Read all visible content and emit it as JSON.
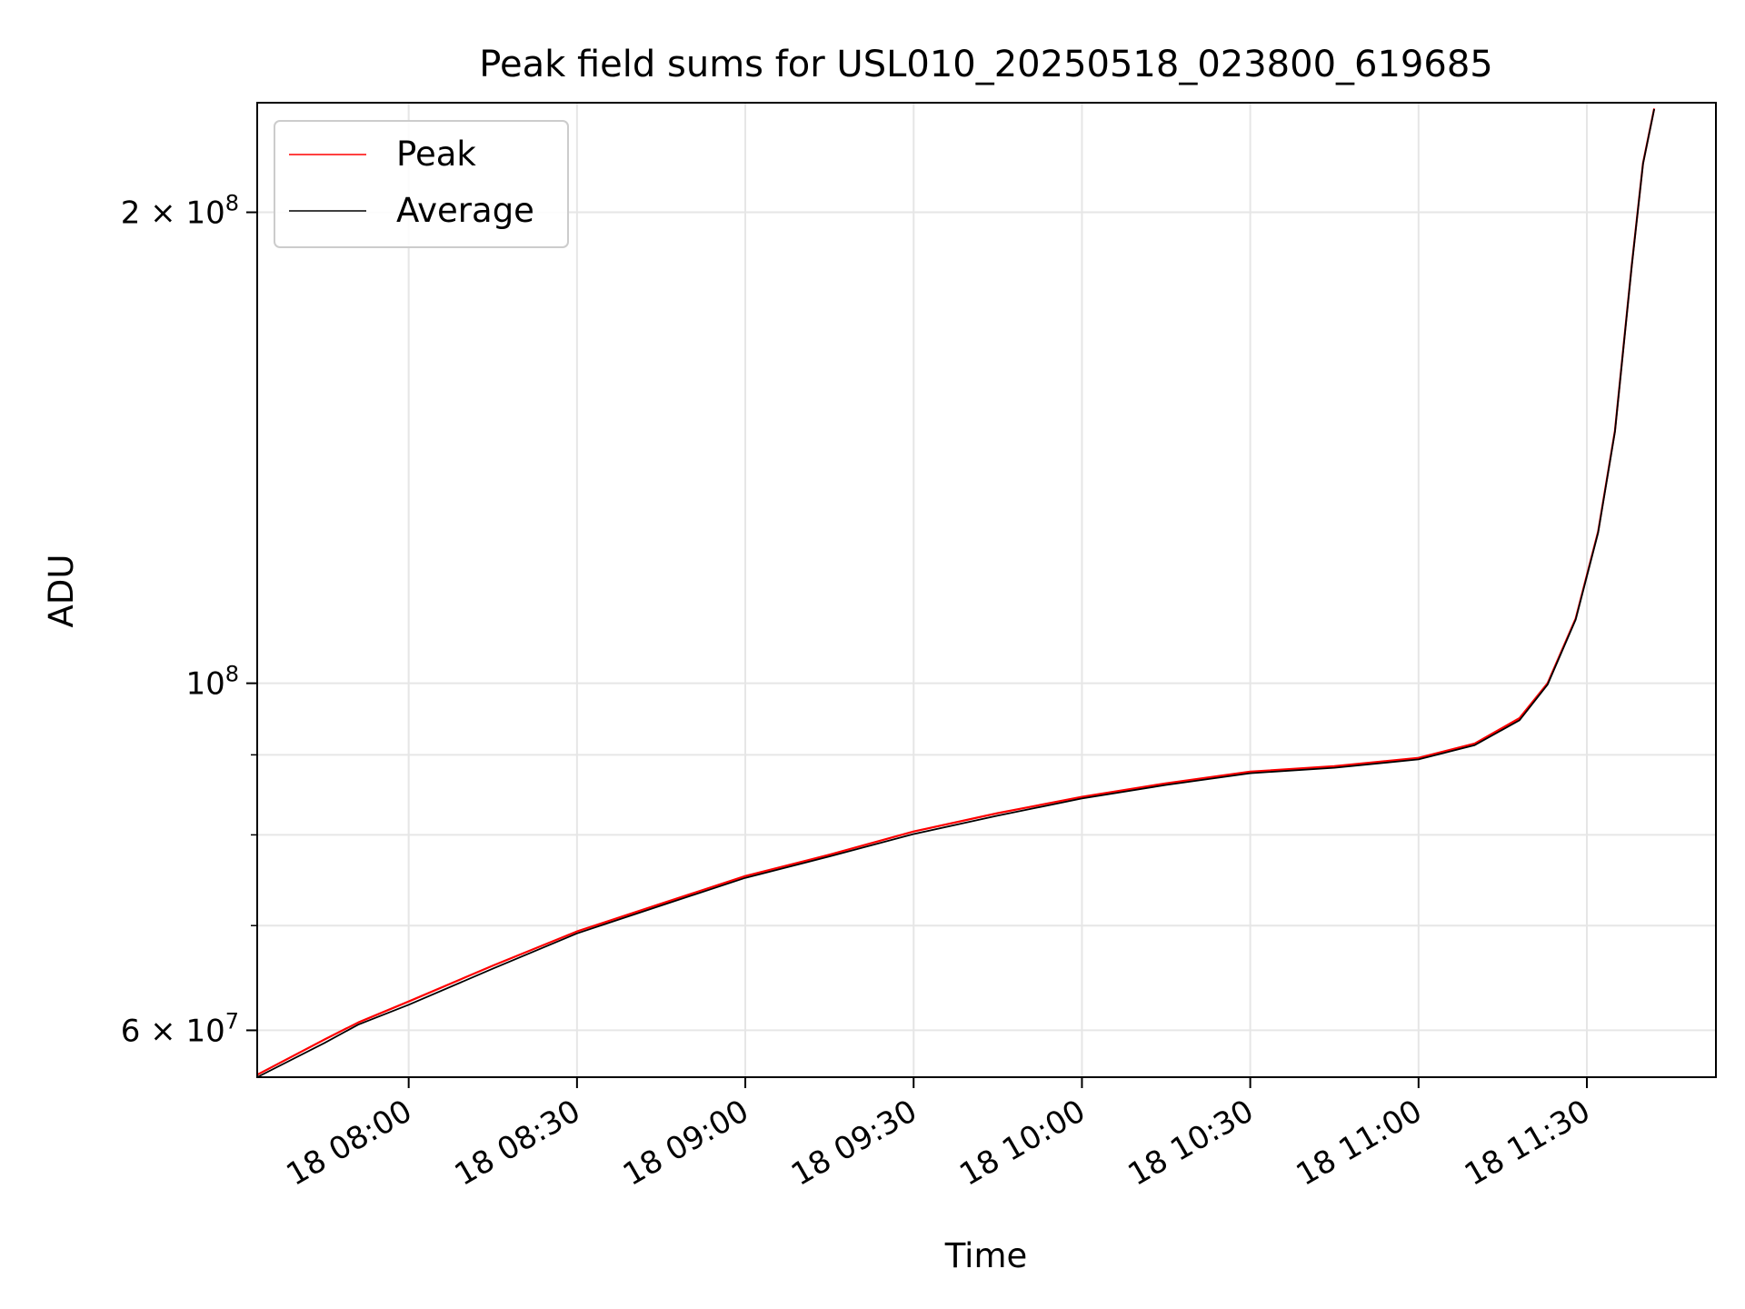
{
  "chart_data": {
    "type": "line",
    "title": "Peak field sums for USL010_20250518_023800_619685",
    "xlabel": "Time",
    "ylabel": "ADU",
    "yscale": "log",
    "ylim": [
      56000000,
      235000000
    ],
    "xlim": [
      "2025-05-18 07:33",
      "2025-05-18 11:53"
    ],
    "grid": true,
    "legend_position": "top-left",
    "x_ticks": [
      {
        "time": "2025-05-18 08:00",
        "label": "18 08:00"
      },
      {
        "time": "2025-05-18 08:30",
        "label": "18 08:30"
      },
      {
        "time": "2025-05-18 09:00",
        "label": "18 09:00"
      },
      {
        "time": "2025-05-18 09:30",
        "label": "18 09:30"
      },
      {
        "time": "2025-05-18 10:00",
        "label": "18 10:00"
      },
      {
        "time": "2025-05-18 10:30",
        "label": "18 10:30"
      },
      {
        "time": "2025-05-18 11:00",
        "label": "18 11:00"
      },
      {
        "time": "2025-05-18 11:30",
        "label": "18 11:30"
      }
    ],
    "y_major_ticks": [
      {
        "value": 60000000,
        "base": "6 × 10",
        "exp": "7"
      },
      {
        "value": 100000000,
        "base": "10",
        "exp": "8"
      },
      {
        "value": 200000000,
        "base": "2 × 10",
        "exp": "8"
      }
    ],
    "y_minor_ticks": [
      70000000,
      80000000,
      90000000
    ],
    "series": [
      {
        "name": "Peak",
        "color": "#ff0000",
        "points": [
          [
            "2025-05-18 07:33",
            56200000
          ],
          [
            "2025-05-18 07:45",
            59200000
          ],
          [
            "2025-05-18 07:51",
            60700000
          ],
          [
            "2025-05-18 08:00",
            62600000
          ],
          [
            "2025-05-18 08:15",
            66000000
          ],
          [
            "2025-05-18 08:30",
            69400000
          ],
          [
            "2025-05-18 08:45",
            72300000
          ],
          [
            "2025-05-18 09:00",
            75300000
          ],
          [
            "2025-05-18 09:15",
            77700000
          ],
          [
            "2025-05-18 09:30",
            80400000
          ],
          [
            "2025-05-18 09:45",
            82600000
          ],
          [
            "2025-05-18 10:00",
            84600000
          ],
          [
            "2025-05-18 10:15",
            86300000
          ],
          [
            "2025-05-18 10:30",
            87800000
          ],
          [
            "2025-05-18 10:45",
            88500000
          ],
          [
            "2025-05-18 11:00",
            89600000
          ],
          [
            "2025-05-18 11:10",
            91500000
          ],
          [
            "2025-05-18 11:18",
            95000000
          ],
          [
            "2025-05-18 11:23",
            100000000
          ],
          [
            "2025-05-18 11:28",
            110000000
          ],
          [
            "2025-05-18 11:32",
            125000000
          ],
          [
            "2025-05-18 11:35",
            145000000
          ],
          [
            "2025-05-18 11:38",
            185000000
          ],
          [
            "2025-05-18 11:40",
            215000000
          ],
          [
            "2025-05-18 11:42",
            233000000
          ]
        ]
      },
      {
        "name": "Average",
        "color": "#000000",
        "points": [
          [
            "2025-05-18 07:33",
            56000000
          ],
          [
            "2025-05-18 07:45",
            58900000
          ],
          [
            "2025-05-18 07:51",
            60500000
          ],
          [
            "2025-05-18 08:00",
            62300000
          ],
          [
            "2025-05-18 08:15",
            65700000
          ],
          [
            "2025-05-18 08:30",
            69200000
          ],
          [
            "2025-05-18 08:45",
            72100000
          ],
          [
            "2025-05-18 09:00",
            75100000
          ],
          [
            "2025-05-18 09:15",
            77500000
          ],
          [
            "2025-05-18 09:30",
            80100000
          ],
          [
            "2025-05-18 09:45",
            82300000
          ],
          [
            "2025-05-18 10:00",
            84400000
          ],
          [
            "2025-05-18 10:15",
            86100000
          ],
          [
            "2025-05-18 10:30",
            87600000
          ],
          [
            "2025-05-18 10:45",
            88300000
          ],
          [
            "2025-05-18 11:00",
            89400000
          ],
          [
            "2025-05-18 11:10",
            91300000
          ],
          [
            "2025-05-18 11:18",
            94700000
          ],
          [
            "2025-05-18 11:23",
            99800000
          ],
          [
            "2025-05-18 11:28",
            109800000
          ],
          [
            "2025-05-18 11:32",
            124800000
          ],
          [
            "2025-05-18 11:35",
            144800000
          ],
          [
            "2025-05-18 11:38",
            184800000
          ],
          [
            "2025-05-18 11:40",
            214800000
          ],
          [
            "2025-05-18 11:42",
            232800000
          ]
        ]
      }
    ]
  }
}
